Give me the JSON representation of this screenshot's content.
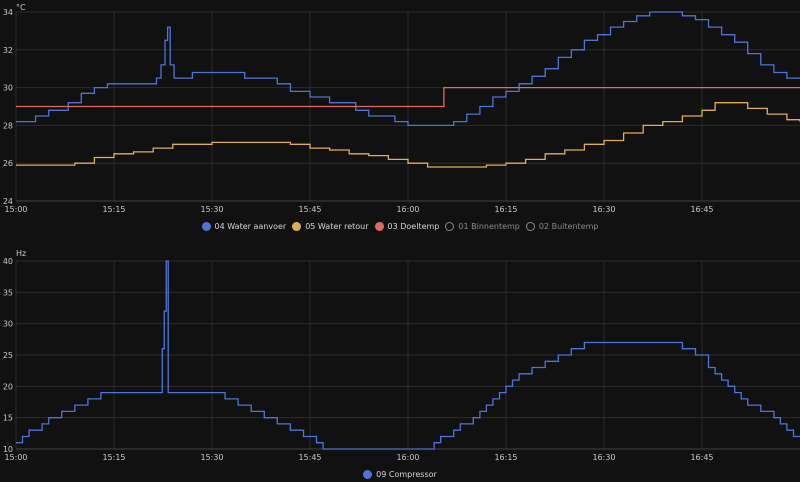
{
  "chart_data": [
    {
      "type": "line",
      "ylabel": "°C",
      "ylim": [
        24,
        34
      ],
      "yticks": [
        24,
        26,
        28,
        30,
        32,
        34
      ],
      "x_range_min": [
        0,
        120
      ],
      "xticks": [
        {
          "t": 0,
          "label": "15:00"
        },
        {
          "t": 15,
          "label": "15:15"
        },
        {
          "t": 30,
          "label": "15:30"
        },
        {
          "t": 45,
          "label": "15:45"
        },
        {
          "t": 60,
          "label": "16:00"
        },
        {
          "t": 75,
          "label": "16:15"
        },
        {
          "t": 90,
          "label": "16:30"
        },
        {
          "t": 105,
          "label": "16:45"
        }
      ],
      "series": [
        {
          "name": "04 Water aanvoer",
          "color": "#4f74d6",
          "visible": true,
          "points": [
            [
              0,
              28.2
            ],
            [
              3,
              28.5
            ],
            [
              5,
              28.8
            ],
            [
              8,
              29.2
            ],
            [
              10,
              29.7
            ],
            [
              12,
              30.0
            ],
            [
              14,
              30.2
            ],
            [
              16,
              30.2
            ],
            [
              20,
              30.2
            ],
            [
              21.5,
              30.5
            ],
            [
              22.2,
              31.2
            ],
            [
              22.8,
              32.5
            ],
            [
              23.2,
              33.2
            ],
            [
              23.6,
              31.2
            ],
            [
              24.2,
              30.5
            ],
            [
              25,
              30.5
            ],
            [
              27,
              30.8
            ],
            [
              30,
              30.8
            ],
            [
              33,
              30.8
            ],
            [
              35,
              30.5
            ],
            [
              40,
              30.2
            ],
            [
              42,
              29.8
            ],
            [
              45,
              29.5
            ],
            [
              48,
              29.2
            ],
            [
              52,
              28.8
            ],
            [
              54,
              28.5
            ],
            [
              58,
              28.2
            ],
            [
              60,
              28.0
            ],
            [
              61,
              28.0
            ],
            [
              63,
              28.0
            ],
            [
              65,
              28.0
            ],
            [
              67,
              28.2
            ],
            [
              69,
              28.6
            ],
            [
              71,
              29.0
            ],
            [
              73,
              29.5
            ],
            [
              75,
              29.8
            ],
            [
              77,
              30.2
            ],
            [
              79,
              30.6
            ],
            [
              81,
              31.0
            ],
            [
              83,
              31.6
            ],
            [
              85,
              32.0
            ],
            [
              87,
              32.5
            ],
            [
              89,
              32.8
            ],
            [
              91,
              33.2
            ],
            [
              93,
              33.5
            ],
            [
              95,
              33.8
            ],
            [
              97,
              34.0
            ],
            [
              100,
              34.0
            ],
            [
              102,
              33.8
            ],
            [
              104,
              33.6
            ],
            [
              106,
              33.2
            ],
            [
              108,
              32.8
            ],
            [
              110,
              32.4
            ],
            [
              112,
              31.8
            ],
            [
              114,
              31.2
            ],
            [
              116,
              30.8
            ],
            [
              118,
              30.5
            ],
            [
              120,
              30.5
            ]
          ]
        },
        {
          "name": "05 Water retour",
          "color": "#e0b050",
          "visible": true,
          "points": [
            [
              0,
              25.9
            ],
            [
              3,
              25.9
            ],
            [
              6,
              25.9
            ],
            [
              9,
              26.0
            ],
            [
              12,
              26.3
            ],
            [
              15,
              26.5
            ],
            [
              18,
              26.6
            ],
            [
              21,
              26.8
            ],
            [
              24,
              27.0
            ],
            [
              27,
              27.0
            ],
            [
              30,
              27.1
            ],
            [
              33,
              27.1
            ],
            [
              36,
              27.1
            ],
            [
              39,
              27.1
            ],
            [
              42,
              27.0
            ],
            [
              45,
              26.8
            ],
            [
              48,
              26.7
            ],
            [
              51,
              26.5
            ],
            [
              54,
              26.4
            ],
            [
              57,
              26.2
            ],
            [
              60,
              26.0
            ],
            [
              63,
              25.8
            ],
            [
              66,
              25.8
            ],
            [
              69,
              25.8
            ],
            [
              72,
              25.9
            ],
            [
              75,
              26.0
            ],
            [
              78,
              26.2
            ],
            [
              81,
              26.5
            ],
            [
              84,
              26.7
            ],
            [
              87,
              27.0
            ],
            [
              90,
              27.2
            ],
            [
              93,
              27.6
            ],
            [
              96,
              28.0
            ],
            [
              99,
              28.2
            ],
            [
              102,
              28.5
            ],
            [
              105,
              28.8
            ],
            [
              107,
              29.2
            ],
            [
              110,
              29.2
            ],
            [
              112,
              28.9
            ],
            [
              115,
              28.6
            ],
            [
              118,
              28.3
            ],
            [
              120,
              28.2
            ]
          ]
        },
        {
          "name": "03 Doeltemp",
          "color": "#e06a5e",
          "visible": true,
          "points": [
            [
              0,
              29.0
            ],
            [
              65.5,
              29.0
            ],
            [
              65.5,
              30.0
            ],
            [
              120,
              30.0
            ]
          ]
        },
        {
          "name": "01 Binnentemp",
          "color": "#8a8a8a",
          "visible": false,
          "points": []
        },
        {
          "name": "02 Buitentemp",
          "color": "#8a8a8a",
          "visible": false,
          "points": []
        }
      ]
    },
    {
      "type": "line",
      "ylabel": "Hz",
      "ylim": [
        10,
        40
      ],
      "yticks": [
        10,
        15,
        20,
        25,
        30,
        35,
        40
      ],
      "x_range_min": [
        0,
        120
      ],
      "xticks": [
        {
          "t": 0,
          "label": "15:00"
        },
        {
          "t": 15,
          "label": "15:15"
        },
        {
          "t": 30,
          "label": "15:30"
        },
        {
          "t": 45,
          "label": "15:45"
        },
        {
          "t": 60,
          "label": "16:00"
        },
        {
          "t": 75,
          "label": "16:15"
        },
        {
          "t": 90,
          "label": "16:30"
        },
        {
          "t": 105,
          "label": "16:45"
        }
      ],
      "series": [
        {
          "name": "09 Compressor",
          "color": "#4f74d6",
          "visible": true,
          "points": [
            [
              0,
              11
            ],
            [
              1,
              12
            ],
            [
              2,
              13
            ],
            [
              4,
              14
            ],
            [
              5,
              15
            ],
            [
              7,
              16
            ],
            [
              9,
              17
            ],
            [
              11,
              18
            ],
            [
              13,
              19
            ],
            [
              22,
              19
            ],
            [
              22.4,
              26
            ],
            [
              22.7,
              32
            ],
            [
              23,
              40
            ],
            [
              23.3,
              19
            ],
            [
              30,
              19
            ],
            [
              32,
              18
            ],
            [
              34,
              17
            ],
            [
              36,
              16
            ],
            [
              38,
              15
            ],
            [
              40,
              14
            ],
            [
              42,
              13
            ],
            [
              44,
              12
            ],
            [
              46,
              11
            ],
            [
              47,
              10
            ],
            [
              63,
              10
            ],
            [
              64,
              11
            ],
            [
              65,
              12
            ],
            [
              67,
              13
            ],
            [
              68,
              14
            ],
            [
              70,
              15
            ],
            [
              71,
              16
            ],
            [
              72,
              17
            ],
            [
              73,
              18
            ],
            [
              74,
              19
            ],
            [
              75,
              20
            ],
            [
              76,
              21
            ],
            [
              77,
              22
            ],
            [
              79,
              23
            ],
            [
              81,
              24
            ],
            [
              83,
              25
            ],
            [
              85,
              26
            ],
            [
              87,
              27
            ],
            [
              101,
              27
            ],
            [
              102,
              26
            ],
            [
              104,
              25
            ],
            [
              106,
              23
            ],
            [
              107,
              22
            ],
            [
              108,
              21
            ],
            [
              109,
              20
            ],
            [
              110,
              19
            ],
            [
              111,
              18
            ],
            [
              112,
              17
            ],
            [
              114,
              16
            ],
            [
              116,
              15
            ],
            [
              117,
              14
            ],
            [
              118,
              13
            ],
            [
              119,
              12
            ],
            [
              120,
              12
            ]
          ]
        }
      ]
    }
  ]
}
